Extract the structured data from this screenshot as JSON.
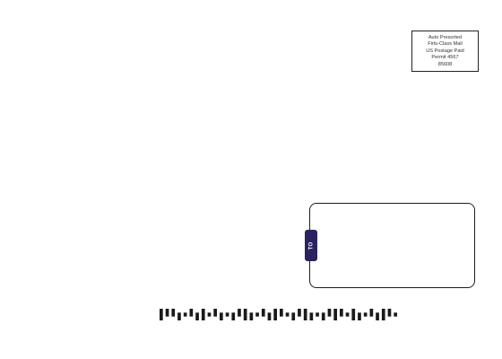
{
  "indicia": {
    "lines": [
      "Auto Presorted",
      "Firts-Class Mail",
      "US Postage Paid",
      "Permit 4567",
      "85608"
    ]
  },
  "address_window": {
    "tab_label": "TO"
  },
  "barcode": {
    "type": "intelligent-mail-barcode",
    "bars": "FAADTADFTADTDAFDTADFATDAFDTDAFATFDTADFAT"
  },
  "colors": {
    "tab": "#2a2360",
    "border": "#1c1c1c",
    "bar": "#1a1a1a"
  }
}
